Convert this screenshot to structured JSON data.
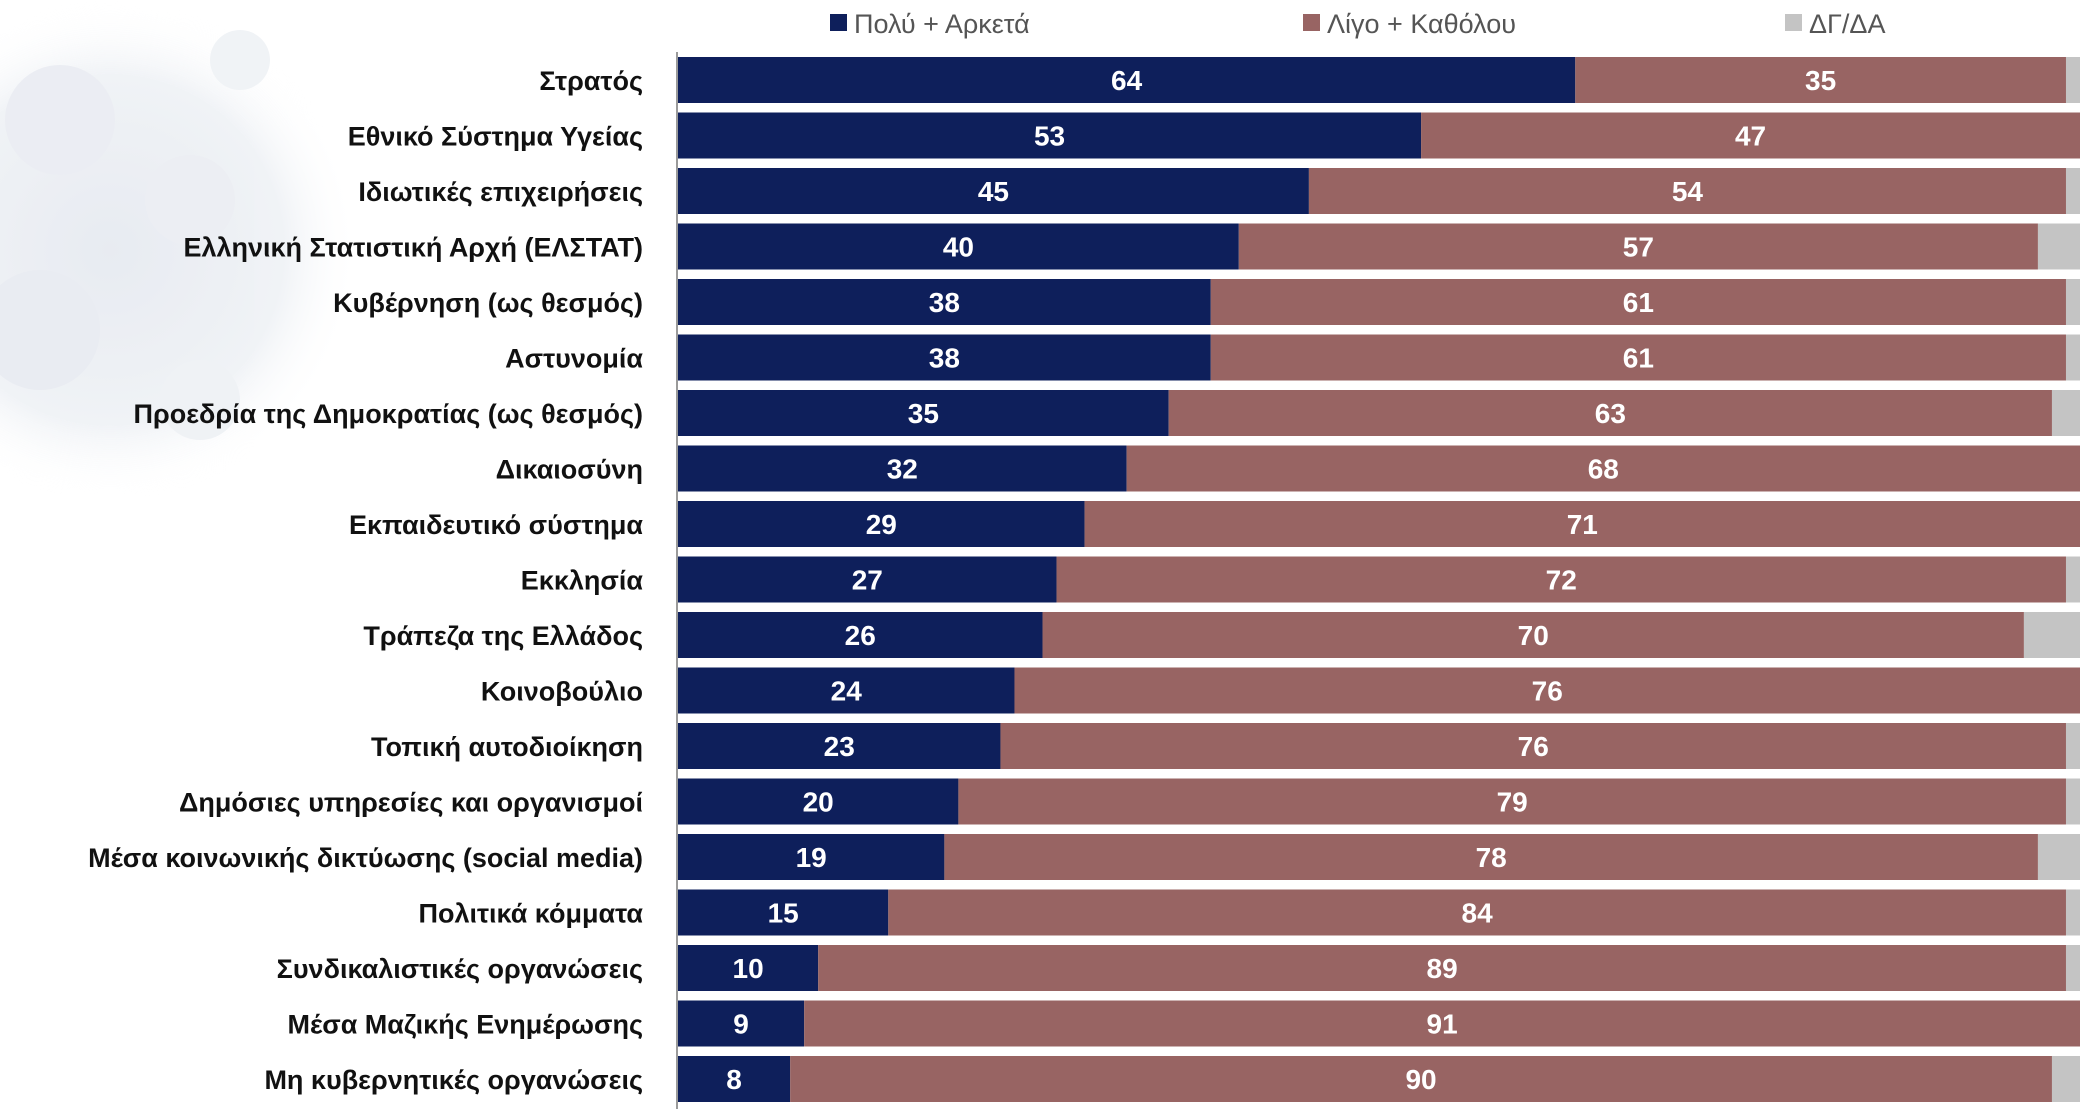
{
  "chart_data": {
    "type": "bar",
    "orientation": "horizontal",
    "stacked": true,
    "categories": [
      "Στρατός",
      "Εθνικό Σύστημα Υγείας",
      "Ιδιωτικές επιχειρήσεις",
      "Ελληνική Στατιστική Αρχή (ΕΛΣΤΑΤ)",
      "Κυβέρνηση (ως θεσμός)",
      "Αστυνομία",
      "Προεδρία της Δημοκρατίας (ως θεσμός)",
      "Δικαιοσύνη",
      "Εκπαιδευτικό σύστημα",
      "Εκκλησία",
      "Τράπεζα της Ελλάδος",
      "Κοινοβούλιο",
      "Τοπική αυτοδιοίκηση",
      "Δημόσιες υπηρεσίες και οργανισμοί",
      "Μέσα κοινωνικής δικτύωσης (social media)",
      "Πολιτικά κόμματα",
      "Συνδικαλιστικές οργανώσεις",
      "Μέσα Μαζικής Ενημέρωσης",
      "Μη κυβερνητικές οργανώσεις"
    ],
    "series": [
      {
        "name": "Πολύ + Αρκετά",
        "color": "#0e1f5b",
        "values": [
          64,
          53,
          45,
          40,
          38,
          38,
          35,
          32,
          29,
          27,
          26,
          24,
          23,
          20,
          19,
          15,
          10,
          9,
          8
        ]
      },
      {
        "name": "Λίγο + Καθόλου",
        "color": "#986463",
        "values": [
          35,
          47,
          54,
          57,
          61,
          61,
          63,
          68,
          71,
          72,
          70,
          76,
          76,
          79,
          78,
          84,
          89,
          91,
          90
        ]
      },
      {
        "name": "ΔΓ/ΔΑ",
        "color": "#c4c4c4",
        "values": [
          1,
          0,
          1,
          3,
          1,
          1,
          2,
          0,
          0,
          1,
          4,
          0,
          1,
          1,
          3,
          1,
          1,
          0,
          2
        ]
      }
    ],
    "xlim": [
      0,
      100
    ],
    "legend_position": "top",
    "grid": false,
    "data_labels": "inside, series 1 and 2"
  }
}
